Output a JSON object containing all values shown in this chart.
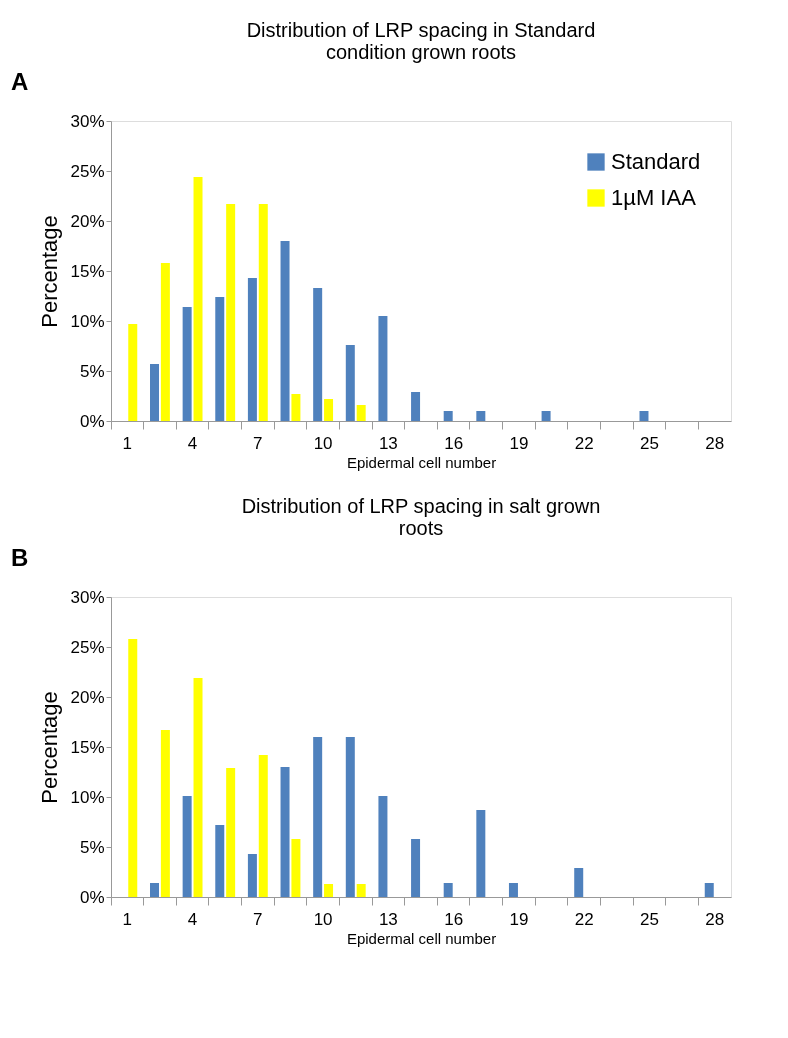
{
  "chart_data": [
    {
      "type": "bar",
      "title": "Distribution of LRP spacing in Standard condition grown roots",
      "xlabel": "Epidermal cell number",
      "ylabel": "Percentage",
      "annotations": [
        "A"
      ],
      "categories": [
        "1",
        null,
        "4",
        null,
        "7",
        null,
        "10",
        null,
        "13",
        null,
        "16",
        null,
        "19",
        null,
        "22",
        null,
        "25",
        null,
        "28"
      ],
      "series": [
        {
          "name": "Standard",
          "color": "#4f81bd",
          "values": [
            0,
            5.7,
            11.4,
            12.4,
            14.3,
            18.0,
            13.3,
            7.6,
            10.5,
            2.9,
            1.0,
            1.0,
            0,
            1.0,
            0,
            0,
            1.0,
            0,
            0
          ]
        },
        {
          "name": "1µM IAA",
          "color": "#ffff00",
          "values": [
            9.7,
            15.8,
            24.4,
            21.7,
            21.7,
            2.7,
            2.2,
            1.6,
            0,
            0,
            0,
            0,
            0,
            0,
            0,
            0,
            0,
            0,
            0
          ]
        }
      ],
      "ylim": [
        0,
        30
      ],
      "yticks": [
        {
          "value": 0,
          "label": "0%"
        },
        {
          "value": 5,
          "label": "5%"
        },
        {
          "value": 10,
          "label": "10%"
        },
        {
          "value": 15,
          "label": "15%"
        },
        {
          "value": 20,
          "label": "20%"
        },
        {
          "value": 25,
          "label": "25%"
        },
        {
          "value": 30,
          "label": "30%"
        }
      ],
      "legend": "top right",
      "grid": false
    },
    {
      "type": "bar",
      "title": "Distribution of LRP spacing in salt grown roots",
      "xlabel": "Epidermal cell number",
      "ylabel": "Percentage",
      "annotations": [
        "B"
      ],
      "categories": [
        "1",
        null,
        "4",
        null,
        "7",
        null,
        "10",
        null,
        "13",
        null,
        "16",
        null,
        "19",
        null,
        "22",
        null,
        "25",
        null,
        "28"
      ],
      "series": [
        {
          "name": "Standard",
          "color": "#4f81bd",
          "values": [
            0,
            1.4,
            10.1,
            7.2,
            4.3,
            13.0,
            16.0,
            16.0,
            10.1,
            5.8,
            1.4,
            8.7,
            1.4,
            0,
            2.9,
            0,
            0,
            0,
            1.4
          ]
        },
        {
          "name": "1µM IAA",
          "color": "#ffff00",
          "values": [
            25.8,
            16.7,
            21.9,
            12.9,
            14.2,
            5.8,
            1.3,
            1.3,
            0,
            0,
            0,
            0,
            0,
            0,
            0,
            0,
            0,
            0,
            0
          ]
        }
      ],
      "ylim": [
        0,
        30
      ],
      "yticks": [
        {
          "value": 0,
          "label": "0%"
        },
        {
          "value": 5,
          "label": "5%"
        },
        {
          "value": 10,
          "label": "10%"
        },
        {
          "value": 15,
          "label": "15%"
        },
        {
          "value": 20,
          "label": "20%"
        },
        {
          "value": 25,
          "label": "25%"
        },
        {
          "value": 30,
          "label": "30%"
        }
      ],
      "legend": "top right",
      "grid": false
    }
  ]
}
